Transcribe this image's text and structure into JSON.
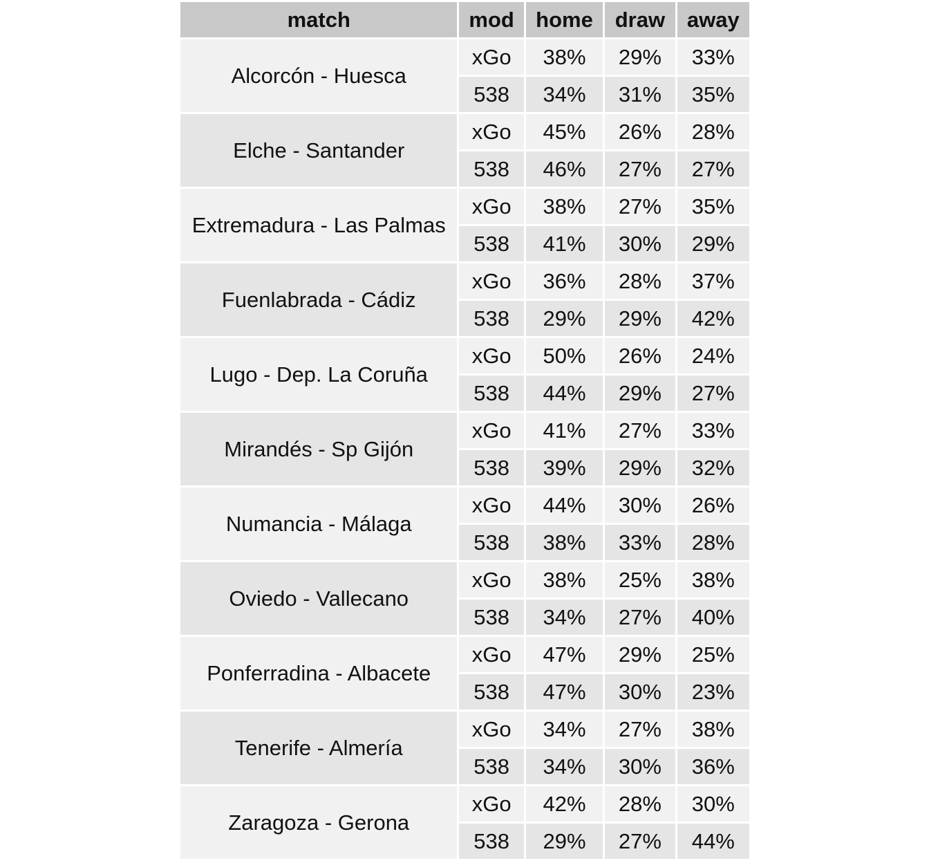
{
  "chart_data": {
    "type": "table",
    "columns": [
      "match",
      "mod",
      "home",
      "draw",
      "away"
    ],
    "rows": [
      {
        "match": "Alcorcón - Huesca",
        "models": [
          {
            "mod": "xGo",
            "home": "38%",
            "draw": "29%",
            "away": "33%"
          },
          {
            "mod": "538",
            "home": "34%",
            "draw": "31%",
            "away": "35%"
          }
        ]
      },
      {
        "match": "Elche - Santander",
        "models": [
          {
            "mod": "xGo",
            "home": "45%",
            "draw": "26%",
            "away": "28%"
          },
          {
            "mod": "538",
            "home": "46%",
            "draw": "27%",
            "away": "27%"
          }
        ]
      },
      {
        "match": "Extremadura - Las Palmas",
        "models": [
          {
            "mod": "xGo",
            "home": "38%",
            "draw": "27%",
            "away": "35%"
          },
          {
            "mod": "538",
            "home": "41%",
            "draw": "30%",
            "away": "29%"
          }
        ]
      },
      {
        "match": "Fuenlabrada - Cádiz",
        "models": [
          {
            "mod": "xGo",
            "home": "36%",
            "draw": "28%",
            "away": "37%"
          },
          {
            "mod": "538",
            "home": "29%",
            "draw": "29%",
            "away": "42%"
          }
        ]
      },
      {
        "match": "Lugo - Dep. La Coruña",
        "models": [
          {
            "mod": "xGo",
            "home": "50%",
            "draw": "26%",
            "away": "24%"
          },
          {
            "mod": "538",
            "home": "44%",
            "draw": "29%",
            "away": "27%"
          }
        ]
      },
      {
        "match": "Mirandés - Sp Gijón",
        "models": [
          {
            "mod": "xGo",
            "home": "41%",
            "draw": "27%",
            "away": "33%"
          },
          {
            "mod": "538",
            "home": "39%",
            "draw": "29%",
            "away": "32%"
          }
        ]
      },
      {
        "match": "Numancia - Málaga",
        "models": [
          {
            "mod": "xGo",
            "home": "44%",
            "draw": "30%",
            "away": "26%"
          },
          {
            "mod": "538",
            "home": "38%",
            "draw": "33%",
            "away": "28%"
          }
        ]
      },
      {
        "match": "Oviedo - Vallecano",
        "models": [
          {
            "mod": "xGo",
            "home": "38%",
            "draw": "25%",
            "away": "38%"
          },
          {
            "mod": "538",
            "home": "34%",
            "draw": "27%",
            "away": "40%"
          }
        ]
      },
      {
        "match": "Ponferradina - Albacete",
        "models": [
          {
            "mod": "xGo",
            "home": "47%",
            "draw": "29%",
            "away": "25%"
          },
          {
            "mod": "538",
            "home": "47%",
            "draw": "30%",
            "away": "23%"
          }
        ]
      },
      {
        "match": "Tenerife - Almería",
        "models": [
          {
            "mod": "xGo",
            "home": "34%",
            "draw": "27%",
            "away": "38%"
          },
          {
            "mod": "538",
            "home": "34%",
            "draw": "30%",
            "away": "36%"
          }
        ]
      },
      {
        "match": "Zaragoza - Gerona",
        "models": [
          {
            "mod": "xGo",
            "home": "42%",
            "draw": "28%",
            "away": "30%"
          },
          {
            "mod": "538",
            "home": "29%",
            "draw": "27%",
            "away": "44%"
          }
        ]
      }
    ]
  }
}
